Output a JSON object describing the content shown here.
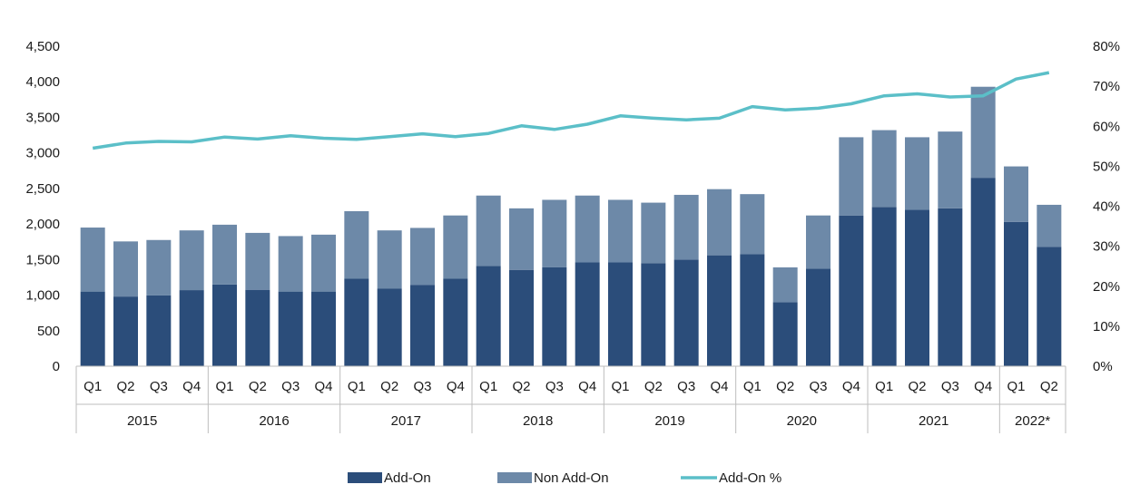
{
  "chart_data": {
    "type": "bar",
    "stacked": true,
    "groups": [
      {
        "label": "2015",
        "quarters": [
          "Q1",
          "Q2",
          "Q3",
          "Q4"
        ]
      },
      {
        "label": "2016",
        "quarters": [
          "Q1",
          "Q2",
          "Q3",
          "Q4"
        ]
      },
      {
        "label": "2017",
        "quarters": [
          "Q1",
          "Q2",
          "Q3",
          "Q4"
        ]
      },
      {
        "label": "2018",
        "quarters": [
          "Q1",
          "Q2",
          "Q3",
          "Q4"
        ]
      },
      {
        "label": "2019",
        "quarters": [
          "Q1",
          "Q2",
          "Q3",
          "Q4"
        ]
      },
      {
        "label": "2020",
        "quarters": [
          "Q1",
          "Q2",
          "Q3",
          "Q4"
        ]
      },
      {
        "label": "2021",
        "quarters": [
          "Q1",
          "Q2",
          "Q3",
          "Q4"
        ]
      },
      {
        "label": "2022*",
        "quarters": [
          "Q1",
          "Q2"
        ]
      }
    ],
    "series": [
      {
        "name": "Add-On",
        "kind": "bar",
        "axis": "left",
        "color": "#2b4d7a",
        "values": [
          1050,
          980,
          995,
          1070,
          1150,
          1075,
          1050,
          1050,
          1230,
          1090,
          1145,
          1230,
          1410,
          1355,
          1390,
          1460,
          1460,
          1450,
          1500,
          1560,
          1575,
          900,
          1370,
          2120,
          2240,
          2200,
          2220,
          2650,
          2030,
          1680
        ]
      },
      {
        "name": "Non Add-On",
        "kind": "bar",
        "axis": "left",
        "color": "#6d89a8",
        "values": [
          900,
          775,
          780,
          840,
          840,
          800,
          780,
          800,
          950,
          820,
          800,
          890,
          990,
          865,
          950,
          940,
          880,
          850,
          910,
          930,
          845,
          490,
          750,
          1100,
          1080,
          1020,
          1080,
          1280,
          780,
          590
        ]
      },
      {
        "name": "Add-On %",
        "kind": "line",
        "axis": "right",
        "color": "#5bbfc8",
        "values": [
          54.5,
          55.8,
          56.2,
          56.1,
          57.3,
          56.8,
          57.6,
          57.0,
          56.7,
          57.4,
          58.1,
          57.4,
          58.2,
          60.1,
          59.2,
          60.5,
          62.6,
          62.0,
          61.6,
          62.0,
          64.9,
          64.1,
          64.5,
          65.6,
          67.6,
          68.1,
          67.3,
          67.6,
          71.8,
          73.4
        ]
      }
    ],
    "left_axis": {
      "min": 0,
      "max": 4500,
      "ticks": [
        "0",
        "500",
        "1,000",
        "1,500",
        "2,000",
        "2,500",
        "3,000",
        "3,500",
        "4,000",
        "4,500"
      ]
    },
    "right_axis": {
      "min": 0,
      "max": 80,
      "ticks": [
        "0%",
        "10%",
        "20%",
        "30%",
        "40%",
        "50%",
        "60%",
        "70%",
        "80%"
      ]
    },
    "legend": [
      "Add-On",
      "Non Add-On",
      "Add-On %"
    ],
    "legend_position": "bottom",
    "grid": false
  }
}
